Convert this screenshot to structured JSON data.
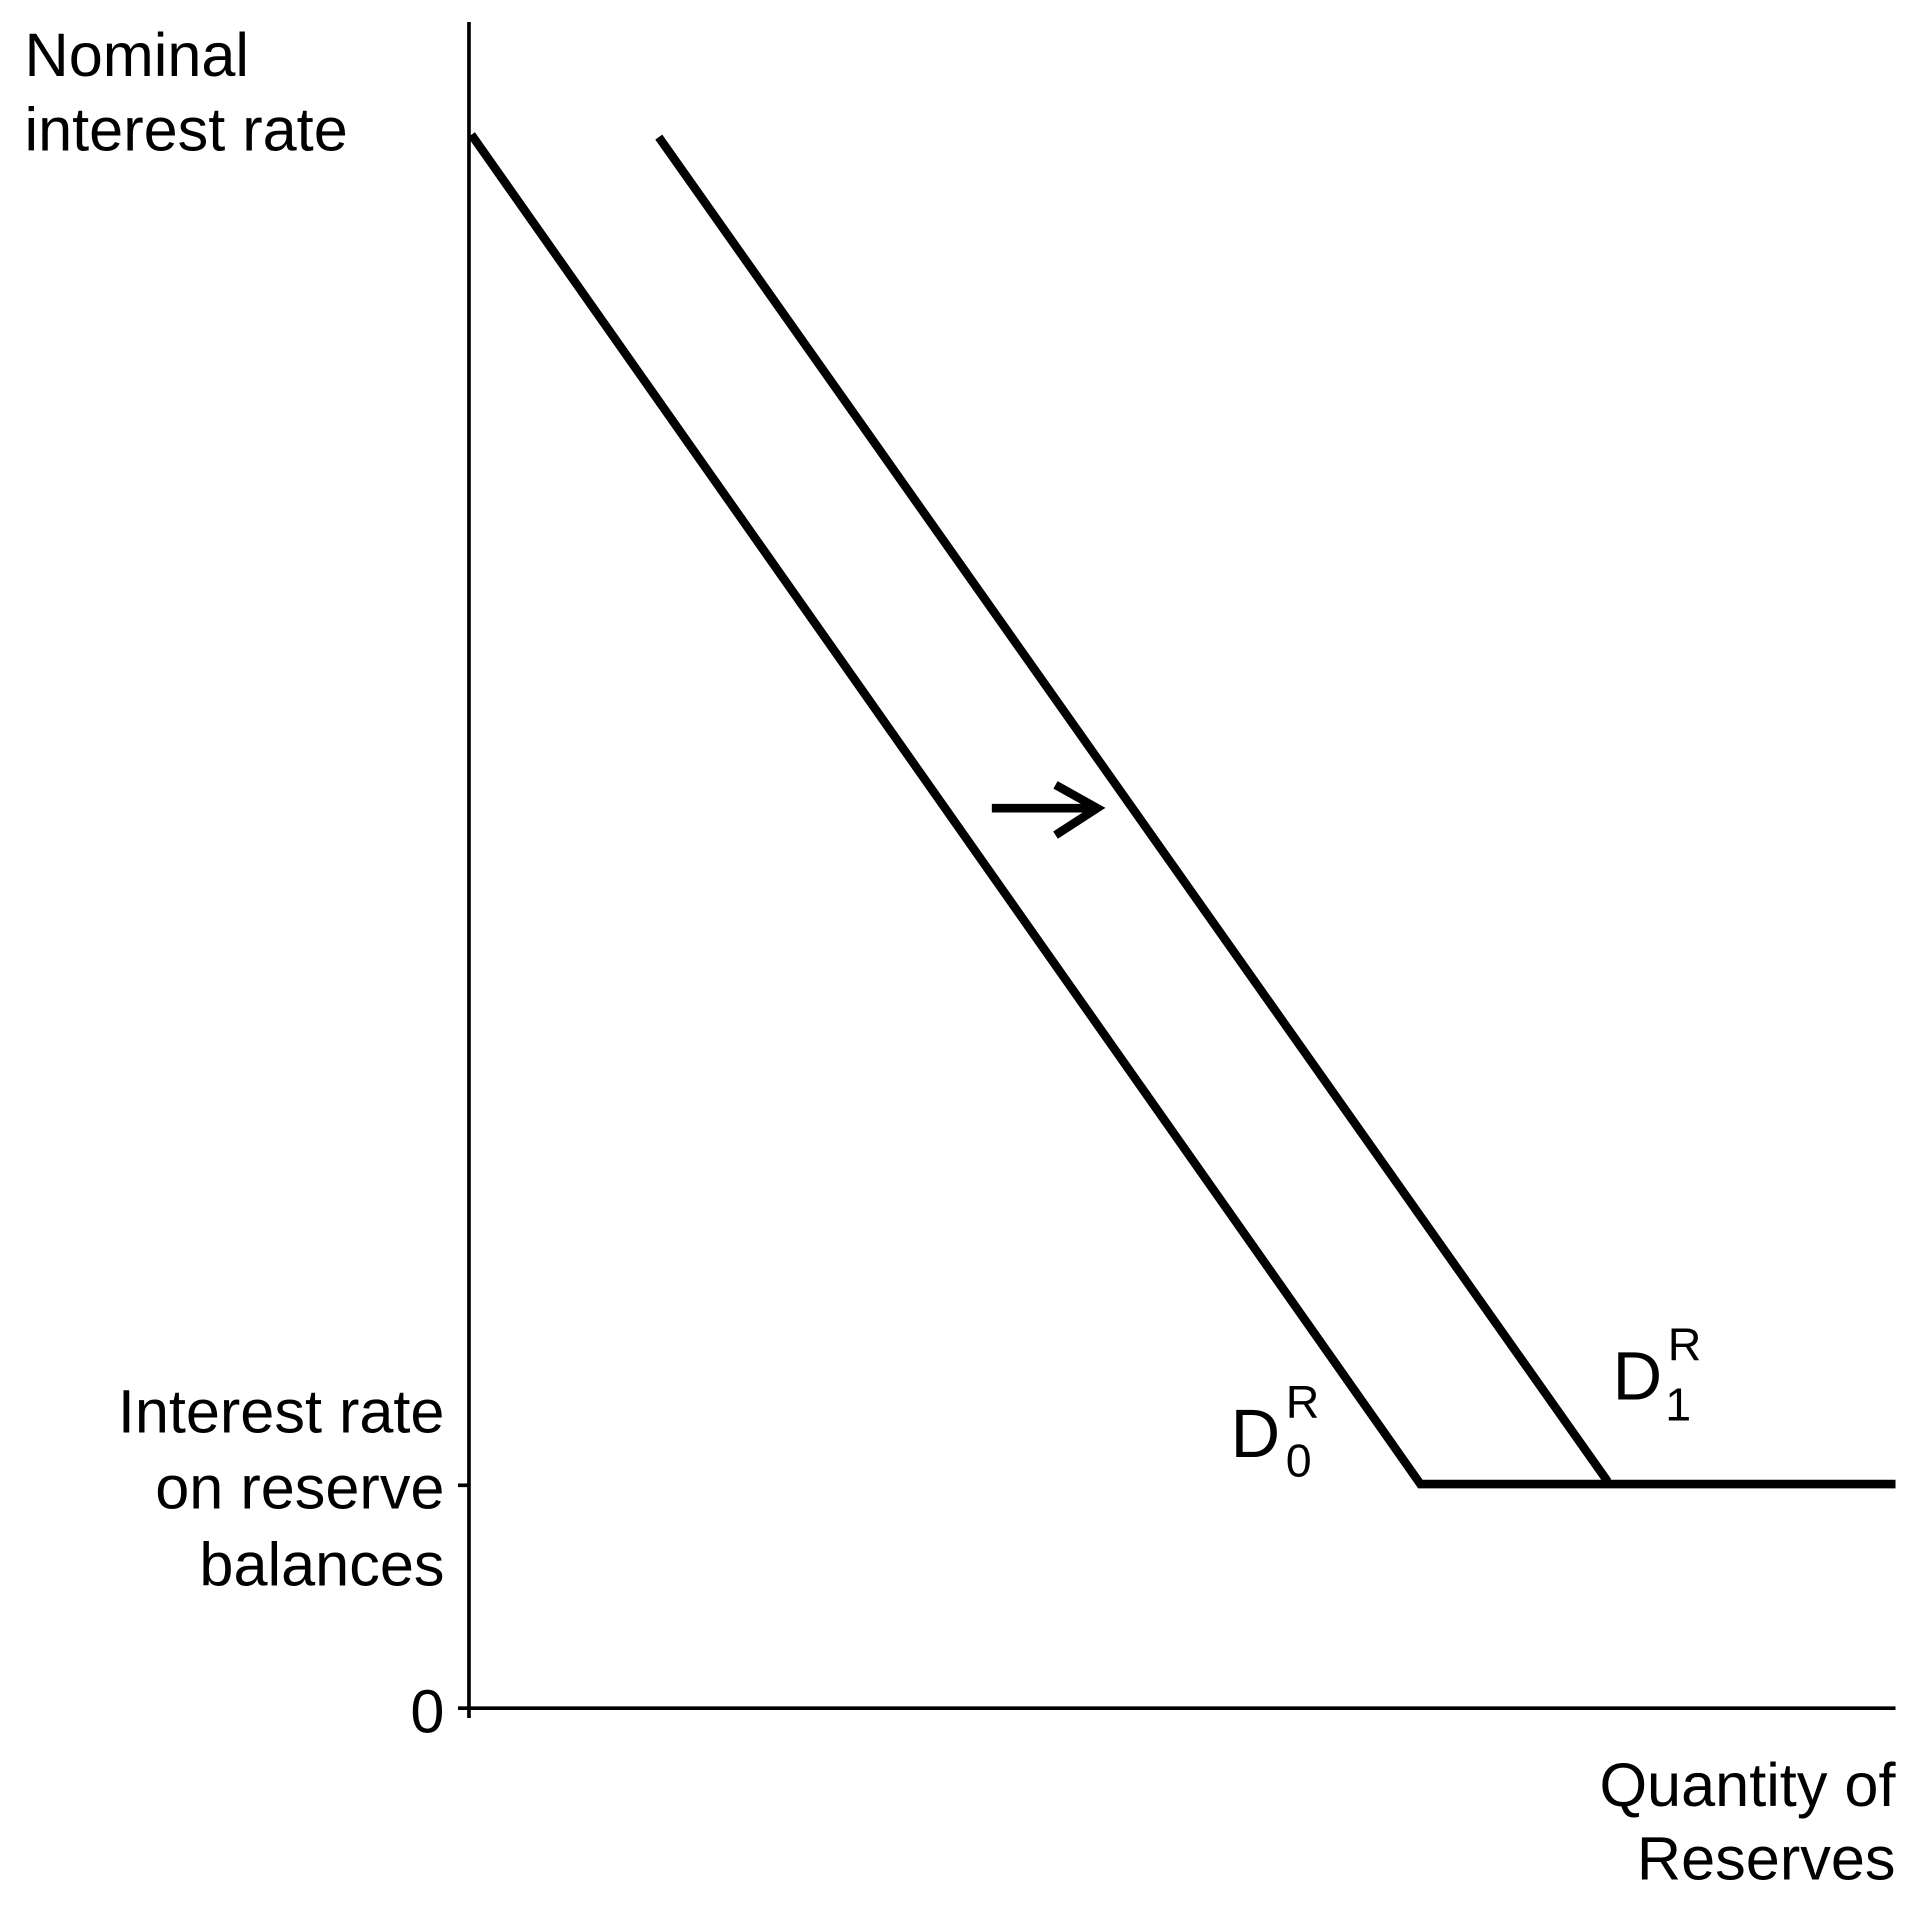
{
  "y_axis": {
    "label_lines": [
      "Nominal",
      "interest rate"
    ]
  },
  "y_levels": {
    "reserve_rate_lines": [
      "Interest rate",
      "on reserve",
      "balances"
    ],
    "zero": "0"
  },
  "x_axis": {
    "label_lines": [
      "Quantity of",
      "Reserves"
    ]
  },
  "curves": [
    {
      "main": "D",
      "sup": "R",
      "sub": "0"
    },
    {
      "main": "D",
      "sup": "R",
      "sub": "1"
    }
  ]
}
